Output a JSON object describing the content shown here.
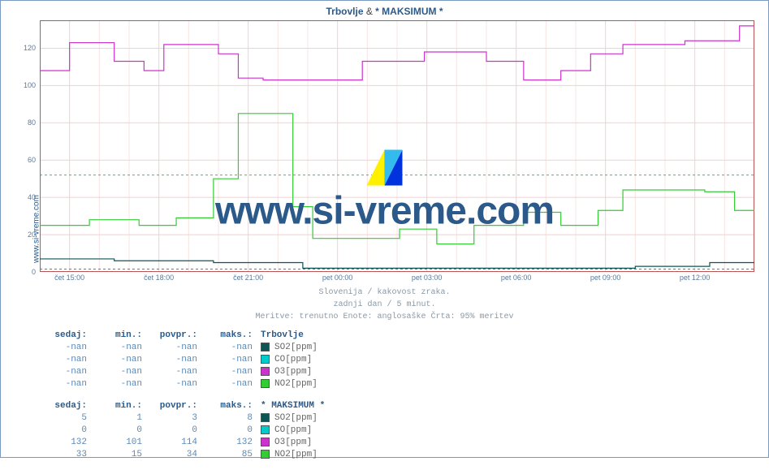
{
  "title_part1": "Trbovlje",
  "title_amp": " & ",
  "title_part2": "* MAKSIMUM *",
  "side_label": "www.si-vreme.com",
  "subtitle1": "Slovenija / kakovost zraka.",
  "subtitle2": "zadnji dan / 5 minut.",
  "subtitle3": "Meritve: trenutno  Enote: anglosaške  Črta: 95% meritev",
  "watermark_text": "www.si-vreme.com",
  "chart": {
    "background": "#ffffff",
    "grid_major": "#f4cfcf",
    "grid_minor": "#f7e4e4",
    "border": "#bb5555",
    "xlim": [
      0,
      288
    ],
    "ylim": [
      0,
      135
    ],
    "yticks": [
      0,
      20,
      40,
      60,
      80,
      100,
      120
    ],
    "xticks": [
      {
        "pos": 12,
        "label": "čet 15:00"
      },
      {
        "pos": 48,
        "label": "čet 18:00"
      },
      {
        "pos": 84,
        "label": "čet 21:00"
      },
      {
        "pos": 120,
        "label": "pet 00:00"
      },
      {
        "pos": 156,
        "label": "pet 03:00"
      },
      {
        "pos": 192,
        "label": "pet 06:00"
      },
      {
        "pos": 228,
        "label": "pet 09:00"
      },
      {
        "pos": 264,
        "label": "pet 12:00"
      }
    ],
    "dashed_lines": [
      {
        "y": 52,
        "color": "#33cc33"
      },
      {
        "y": 1.5,
        "color": "#00aaaa"
      }
    ],
    "series": [
      {
        "name": "O3",
        "color": "#cc33cc",
        "width": 1.2,
        "points": [
          [
            0,
            108
          ],
          [
            12,
            108
          ],
          [
            12,
            123
          ],
          [
            30,
            123
          ],
          [
            30,
            113
          ],
          [
            42,
            113
          ],
          [
            42,
            108
          ],
          [
            50,
            108
          ],
          [
            50,
            122
          ],
          [
            72,
            122
          ],
          [
            72,
            117
          ],
          [
            80,
            117
          ],
          [
            80,
            104
          ],
          [
            90,
            104
          ],
          [
            90,
            103
          ],
          [
            130,
            103
          ],
          [
            130,
            113
          ],
          [
            155,
            113
          ],
          [
            155,
            118
          ],
          [
            180,
            118
          ],
          [
            180,
            113
          ],
          [
            195,
            113
          ],
          [
            195,
            103
          ],
          [
            210,
            103
          ],
          [
            210,
            108
          ],
          [
            222,
            108
          ],
          [
            222,
            117
          ],
          [
            235,
            117
          ],
          [
            235,
            122
          ],
          [
            260,
            122
          ],
          [
            260,
            124
          ],
          [
            282,
            124
          ],
          [
            282,
            132
          ],
          [
            288,
            132
          ]
        ]
      },
      {
        "name": "NO2",
        "color": "#33cc33",
        "width": 1.2,
        "points": [
          [
            0,
            25
          ],
          [
            20,
            25
          ],
          [
            20,
            28
          ],
          [
            40,
            28
          ],
          [
            40,
            25
          ],
          [
            55,
            25
          ],
          [
            55,
            29
          ],
          [
            70,
            29
          ],
          [
            70,
            50
          ],
          [
            80,
            50
          ],
          [
            80,
            85
          ],
          [
            102,
            85
          ],
          [
            102,
            35
          ],
          [
            110,
            35
          ],
          [
            110,
            18
          ],
          [
            145,
            18
          ],
          [
            145,
            23
          ],
          [
            160,
            23
          ],
          [
            160,
            15
          ],
          [
            175,
            15
          ],
          [
            175,
            25
          ],
          [
            195,
            25
          ],
          [
            195,
            32
          ],
          [
            210,
            32
          ],
          [
            210,
            25
          ],
          [
            225,
            25
          ],
          [
            225,
            33
          ],
          [
            235,
            33
          ],
          [
            235,
            44
          ],
          [
            268,
            44
          ],
          [
            268,
            43
          ],
          [
            280,
            43
          ],
          [
            280,
            33
          ],
          [
            288,
            33
          ]
        ]
      },
      {
        "name": "SO2",
        "color": "#0d5555",
        "width": 1.2,
        "points": [
          [
            0,
            7
          ],
          [
            30,
            7
          ],
          [
            30,
            6
          ],
          [
            70,
            6
          ],
          [
            70,
            5
          ],
          [
            106,
            5
          ],
          [
            106,
            2
          ],
          [
            240,
            2
          ],
          [
            240,
            3
          ],
          [
            270,
            3
          ],
          [
            270,
            5
          ],
          [
            288,
            5
          ]
        ]
      }
    ]
  },
  "tables": [
    {
      "title": "Trbovlje",
      "headers": [
        "sedaj:",
        "min.:",
        "povpr.:",
        "maks.:"
      ],
      "rows": [
        {
          "vals": [
            "-nan",
            "-nan",
            "-nan",
            "-nan"
          ],
          "swatch": "#0d5555",
          "label": "SO2[ppm]"
        },
        {
          "vals": [
            "-nan",
            "-nan",
            "-nan",
            "-nan"
          ],
          "swatch": "#00cccc",
          "label": "CO[ppm]"
        },
        {
          "vals": [
            "-nan",
            "-nan",
            "-nan",
            "-nan"
          ],
          "swatch": "#cc33cc",
          "label": "O3[ppm]"
        },
        {
          "vals": [
            "-nan",
            "-nan",
            "-nan",
            "-nan"
          ],
          "swatch": "#33cc33",
          "label": "NO2[ppm]"
        }
      ]
    },
    {
      "title": "* MAKSIMUM *",
      "headers": [
        "sedaj:",
        "min.:",
        "povpr.:",
        "maks.:"
      ],
      "rows": [
        {
          "vals": [
            "5",
            "1",
            "3",
            "8"
          ],
          "swatch": "#0d5555",
          "label": "SO2[ppm]"
        },
        {
          "vals": [
            "0",
            "0",
            "0",
            "0"
          ],
          "swatch": "#00cccc",
          "label": "CO[ppm]"
        },
        {
          "vals": [
            "132",
            "101",
            "114",
            "132"
          ],
          "swatch": "#cc33cc",
          "label": "O3[ppm]"
        },
        {
          "vals": [
            "33",
            "15",
            "34",
            "85"
          ],
          "swatch": "#33cc33",
          "label": "NO2[ppm]"
        }
      ]
    }
  ]
}
